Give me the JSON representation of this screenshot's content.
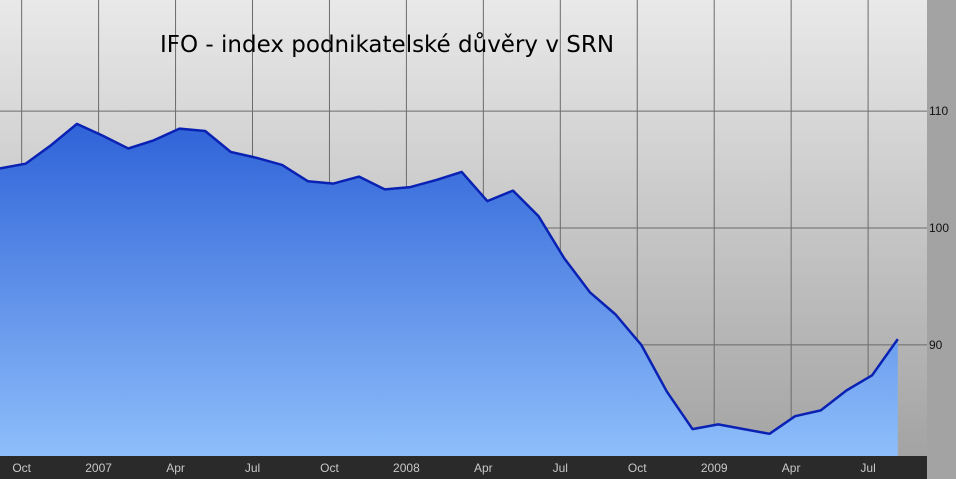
{
  "chart_data": {
    "type": "area",
    "title": "IFO - index podnikatelské důvěry v SRN",
    "xlabel": "",
    "ylabel": "",
    "x_tick_labels": [
      "Oct",
      "2007",
      "Apr",
      "Jul",
      "Oct",
      "2008",
      "Apr",
      "Jul",
      "Oct",
      "2009",
      "Apr",
      "Jul"
    ],
    "y_tick_labels": [
      "90",
      "100",
      "110"
    ],
    "y_ticks": [
      90,
      100,
      110
    ],
    "ylim": [
      80.5,
      119.5
    ],
    "x": [
      "2006-09",
      "2006-10",
      "2006-11",
      "2006-12",
      "2007-01",
      "2007-02",
      "2007-03",
      "2007-04",
      "2007-05",
      "2007-06",
      "2007-07",
      "2007-08",
      "2007-09",
      "2007-10",
      "2007-11",
      "2007-12",
      "2008-01",
      "2008-02",
      "2008-03",
      "2008-04",
      "2008-05",
      "2008-06",
      "2008-07",
      "2008-08",
      "2008-09",
      "2008-10",
      "2008-11",
      "2008-12",
      "2009-01",
      "2009-02",
      "2009-03",
      "2009-04",
      "2009-05",
      "2009-06",
      "2009-07",
      "2009-08"
    ],
    "series": [
      {
        "values": [
          105.1,
          105.5,
          107.1,
          108.9,
          107.9,
          106.8,
          107.5,
          108.5,
          108.3,
          106.5,
          106.0,
          105.4,
          104.0,
          103.8,
          104.4,
          103.3,
          103.5,
          104.1,
          104.8,
          102.3,
          103.2,
          101.0,
          97.4,
          94.5,
          92.6,
          90.0,
          86.0,
          82.8,
          83.2,
          82.8,
          82.4,
          83.9,
          84.4,
          86.1,
          87.4,
          90.5
        ]
      }
    ],
    "grid": true,
    "colors": {
      "line": "#0a22b4",
      "fill_top": "#2f63d8",
      "fill_bottom": "#8ebefa",
      "plot_bg_top": "#e9e9e9",
      "plot_bg_bottom": "#a3a3a3",
      "axis_bg": "#2a2a2a",
      "gridline": "#6b6b6b"
    }
  }
}
